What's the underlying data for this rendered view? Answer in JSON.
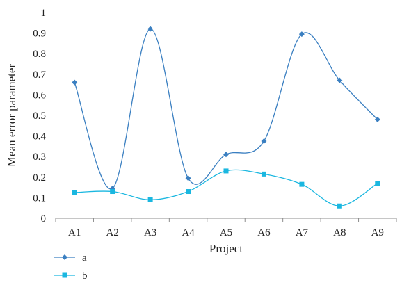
{
  "chart_data": {
    "type": "line",
    "smooth": true,
    "categories": [
      "A1",
      "A2",
      "A3",
      "A4",
      "A5",
      "A6",
      "A7",
      "A8",
      "A9"
    ],
    "series": [
      {
        "name": "a",
        "values": [
          0.66,
          0.145,
          0.92,
          0.195,
          0.31,
          0.375,
          0.895,
          0.67,
          0.48
        ],
        "color": "#3a7fc1",
        "marker": "diamond"
      },
      {
        "name": "b",
        "values": [
          0.125,
          0.13,
          0.09,
          0.13,
          0.23,
          0.215,
          0.165,
          0.06,
          0.17
        ],
        "color": "#1ab7e0",
        "marker": "square"
      }
    ],
    "xlabel": "Project",
    "ylabel": "Mean error parameter",
    "ylim": [
      0,
      1
    ],
    "yticks": [
      "0",
      "0.1",
      "0.2",
      "0.3",
      "0.4",
      "0.5",
      "0.6",
      "0.7",
      "0.8",
      "0.9",
      "1"
    ],
    "grid": false,
    "legend_position": "bottom-left"
  }
}
